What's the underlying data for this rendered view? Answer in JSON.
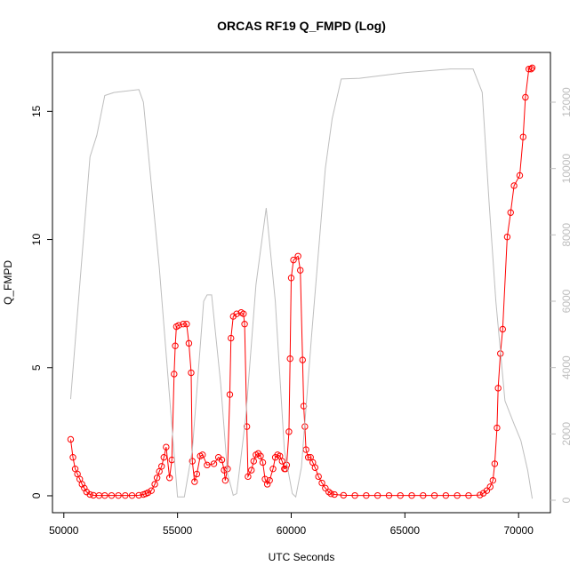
{
  "chart_data": {
    "type": "line",
    "title": "ORCAS RF19 Q_FMPD (Log)",
    "x_label": "UTC Seconds",
    "y_label": "Q_FMPD",
    "xlim": [
      49500,
      71400
    ],
    "xticks": [
      50000,
      55000,
      60000,
      65000,
      70000
    ],
    "ylim": [
      -0.66,
      17.3
    ],
    "yticks": [
      0,
      5,
      10,
      15
    ],
    "y2lim": [
      -375,
      13500
    ],
    "y2ticks": [
      0,
      2000,
      4000,
      6000,
      8000,
      10000,
      12000
    ],
    "series": [
      {
        "color": "#ff0000",
        "marker": "circle",
        "x": [
          50300,
          50400,
          50500,
          50600,
          50700,
          50800,
          50900,
          51000,
          51150,
          51300,
          51550,
          51800,
          52100,
          52400,
          52700,
          53000,
          53300,
          53500,
          53600,
          53700,
          53850,
          54000,
          54100,
          54200,
          54300,
          54400,
          54500,
          54650,
          54750,
          54850,
          54900,
          54950,
          55050,
          55250,
          55400,
          55500,
          55600,
          55650,
          55750,
          55850,
          56000,
          56100,
          56300,
          56600,
          56800,
          56950,
          57050,
          57100,
          57200,
          57300,
          57350,
          57450,
          57600,
          57800,
          57900,
          57950,
          58050,
          58100,
          58250,
          58350,
          58450,
          58550,
          58650,
          58750,
          58850,
          58950,
          59050,
          59200,
          59300,
          59400,
          59500,
          59600,
          59700,
          59750,
          59800,
          59900,
          59950,
          60000,
          60100,
          60300,
          60400,
          60500,
          60550,
          60600,
          60650,
          60750,
          60850,
          60950,
          61050,
          61200,
          61350,
          61500,
          61650,
          61750,
          61900,
          62300,
          62800,
          63300,
          63800,
          64300,
          64800,
          65300,
          65800,
          66300,
          66800,
          67300,
          67800,
          68300,
          68450,
          68600,
          68750,
          68870,
          68950,
          69050,
          69100,
          69200,
          69300,
          69500,
          69650,
          69800,
          70050,
          70200,
          70300,
          70450,
          70550,
          70600
        ],
        "values": [
          2.2,
          1.5,
          1.05,
          0.85,
          0.65,
          0.45,
          0.3,
          0.15,
          0.05,
          0.02,
          0.01,
          0.01,
          0.01,
          0.01,
          0.01,
          0.01,
          0.02,
          0.05,
          0.08,
          0.12,
          0.2,
          0.45,
          0.7,
          0.95,
          1.15,
          1.5,
          1.9,
          0.7,
          1.4,
          4.75,
          5.85,
          6.6,
          6.65,
          6.7,
          6.7,
          5.95,
          4.8,
          1.35,
          0.55,
          0.85,
          1.55,
          1.6,
          1.2,
          1.25,
          1.5,
          1.4,
          1.0,
          0.6,
          1.05,
          3.95,
          6.15,
          7.0,
          7.1,
          7.15,
          7.1,
          6.7,
          2.7,
          0.75,
          1.0,
          1.35,
          1.6,
          1.65,
          1.55,
          1.3,
          0.65,
          0.45,
          0.6,
          1.05,
          1.5,
          1.6,
          1.55,
          1.35,
          1.05,
          1.05,
          1.2,
          2.5,
          5.35,
          8.5,
          9.2,
          9.35,
          8.8,
          5.3,
          3.5,
          2.7,
          1.8,
          1.5,
          1.5,
          1.3,
          1.1,
          0.75,
          0.5,
          0.3,
          0.15,
          0.08,
          0.05,
          0.02,
          0.01,
          0.01,
          0.01,
          0.01,
          0.01,
          0.01,
          0.01,
          0.01,
          0.01,
          0.01,
          0.01,
          0.03,
          0.1,
          0.2,
          0.35,
          0.6,
          1.25,
          2.65,
          4.2,
          5.55,
          6.5,
          10.1,
          11.05,
          12.1,
          12.5,
          14.0,
          15.55,
          16.65,
          16.65,
          16.7
        ]
      },
      {
        "color": "#bebebe",
        "axis": "y2",
        "x": [
          50300,
          51150,
          51450,
          51800,
          52200,
          53300,
          53500,
          54200,
          55000,
          55300,
          55650,
          56150,
          56300,
          56500,
          56900,
          57200,
          57450,
          57600,
          58000,
          58450,
          58900,
          59300,
          59700,
          60050,
          60200,
          60450,
          60900,
          61500,
          61800,
          62200,
          63000,
          65000,
          67000,
          68000,
          68400,
          68700,
          69000,
          69400,
          69800,
          70100,
          70400,
          70600
        ],
        "values": [
          3050,
          10350,
          11000,
          12200,
          12290,
          12380,
          12000,
          7000,
          100,
          100,
          1500,
          6000,
          6190,
          6190,
          3500,
          800,
          150,
          200,
          2500,
          6500,
          8810,
          6000,
          1500,
          200,
          100,
          1000,
          5000,
          10000,
          11500,
          12700,
          12720,
          12890,
          13000,
          13000,
          12300,
          9000,
          6000,
          3000,
          2300,
          1800,
          900,
          50
        ]
      }
    ]
  }
}
